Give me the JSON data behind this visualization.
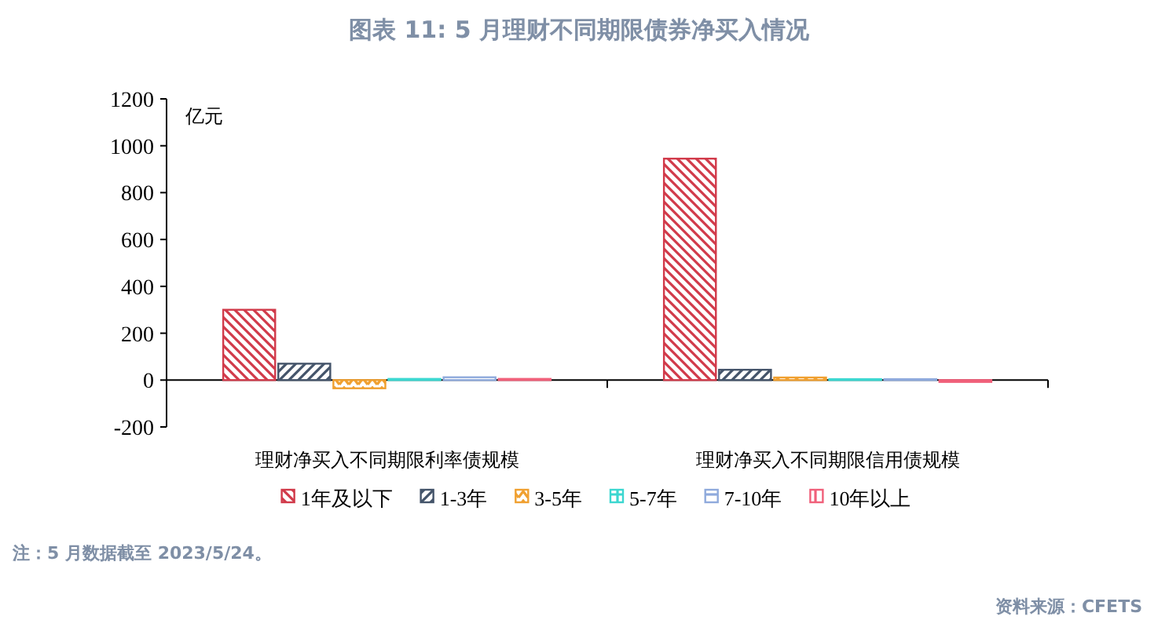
{
  "chart_data": {
    "type": "bar",
    "title": "图表 11: 5 月理财不同期限债券净买入情况",
    "ylabel": "亿元",
    "categories": [
      "理财净买入不同期限利率债规模",
      "理财净买入不同期限信用债规模"
    ],
    "series": [
      {
        "name": "1年及以下",
        "color": "#d13a4a",
        "values": [
          300,
          945
        ]
      },
      {
        "name": "1-3年",
        "color": "#44546a",
        "values": [
          70,
          44
        ]
      },
      {
        "name": "3-5年",
        "color": "#f0a030",
        "values": [
          -35,
          11
        ]
      },
      {
        "name": "5-7年",
        "color": "#3cd7d0",
        "values": [
          5,
          4
        ]
      },
      {
        "name": "7-10年",
        "color": "#8faadc",
        "values": [
          12,
          4
        ]
      },
      {
        "name": "10年以上",
        "color": "#f0607a",
        "values": [
          5,
          -8
        ]
      }
    ],
    "ylim": [
      -200,
      1200
    ],
    "yticks": [
      -200,
      0,
      200,
      400,
      600,
      800,
      1000,
      1200
    ],
    "legend": "bottom",
    "annotations": [
      "注：5 月数据截至 2023/5/24。",
      "资料来源：CFETS"
    ]
  }
}
